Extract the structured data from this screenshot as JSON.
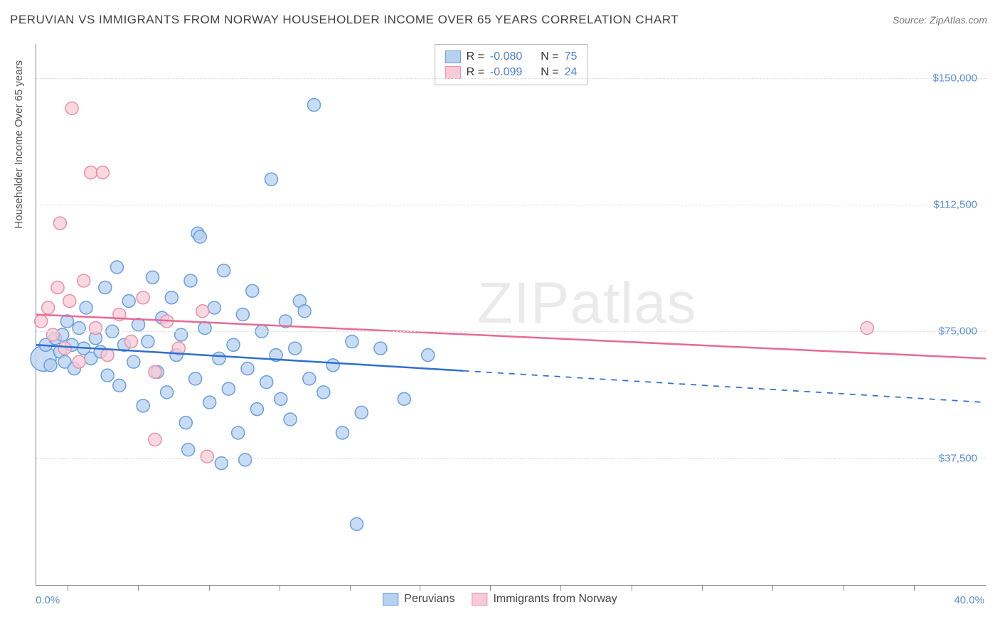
{
  "title": "PERUVIAN VS IMMIGRANTS FROM NORWAY HOUSEHOLDER INCOME OVER 65 YEARS CORRELATION CHART",
  "source": "Source: ZipAtlas.com",
  "watermark": "ZIPatlas",
  "chart": {
    "type": "scatter-with-regression",
    "x_axis": {
      "min_label": "0.0%",
      "max_label": "40.0%",
      "min": 0,
      "max": 40,
      "tick_positions_pct": [
        3.3,
        10.7,
        18.2,
        25.6,
        33.0,
        40.4,
        47.8,
        55.2,
        62.7,
        70.1,
        77.5,
        85.0,
        92.4
      ]
    },
    "y_axis": {
      "label": "Householder Income Over 65 years",
      "min": 0,
      "max": 160000,
      "gridlines": [
        {
          "value": 37500,
          "label": "$37,500"
        },
        {
          "value": 75000,
          "label": "$75,000"
        },
        {
          "value": 112500,
          "label": "$112,500"
        },
        {
          "value": 150000,
          "label": "$150,000"
        }
      ]
    },
    "legend_top": {
      "series": [
        {
          "color": "blue",
          "r_label": "R =",
          "r_value": "-0.080",
          "n_label": "N =",
          "n_value": "75"
        },
        {
          "color": "pink",
          "r_label": "R =",
          "r_value": "-0.099",
          "n_label": "N =",
          "n_value": "24"
        }
      ]
    },
    "legend_bottom": {
      "items": [
        {
          "color": "blue",
          "label": "Peruvians"
        },
        {
          "color": "pink",
          "label": "Immigrants from Norway"
        }
      ]
    },
    "series": [
      {
        "name": "Peruvians",
        "marker_color_fill": "#b6d0f0",
        "marker_color_stroke": "#6a9fe0",
        "marker_opacity": 0.75,
        "marker_radius": 9,
        "regression": {
          "color": "#2f6fd0",
          "width": 2.5,
          "solid_x_end_pct": 18,
          "y_start": 71000,
          "y_end": 54000
        },
        "points": [
          {
            "x": 0.3,
            "y": 67000,
            "r": 18
          },
          {
            "x": 0.4,
            "y": 71000
          },
          {
            "x": 0.6,
            "y": 65000
          },
          {
            "x": 0.8,
            "y": 73000
          },
          {
            "x": 1.0,
            "y": 69000
          },
          {
            "x": 1.1,
            "y": 74000
          },
          {
            "x": 1.2,
            "y": 66000
          },
          {
            "x": 1.3,
            "y": 78000
          },
          {
            "x": 1.5,
            "y": 71000
          },
          {
            "x": 1.6,
            "y": 64000
          },
          {
            "x": 1.8,
            "y": 76000
          },
          {
            "x": 2.0,
            "y": 70000
          },
          {
            "x": 2.1,
            "y": 82000
          },
          {
            "x": 2.3,
            "y": 67000
          },
          {
            "x": 2.5,
            "y": 73000
          },
          {
            "x": 2.7,
            "y": 69000
          },
          {
            "x": 2.9,
            "y": 88000
          },
          {
            "x": 3.0,
            "y": 62000
          },
          {
            "x": 3.2,
            "y": 75000
          },
          {
            "x": 3.4,
            "y": 94000
          },
          {
            "x": 3.5,
            "y": 59000
          },
          {
            "x": 3.7,
            "y": 71000
          },
          {
            "x": 3.9,
            "y": 84000
          },
          {
            "x": 4.1,
            "y": 66000
          },
          {
            "x": 4.3,
            "y": 77000
          },
          {
            "x": 4.5,
            "y": 53000
          },
          {
            "x": 4.7,
            "y": 72000
          },
          {
            "x": 4.9,
            "y": 91000
          },
          {
            "x": 5.1,
            "y": 63000
          },
          {
            "x": 5.3,
            "y": 79000
          },
          {
            "x": 5.5,
            "y": 57000
          },
          {
            "x": 5.7,
            "y": 85000
          },
          {
            "x": 5.9,
            "y": 68000
          },
          {
            "x": 6.1,
            "y": 74000
          },
          {
            "x": 6.3,
            "y": 48000
          },
          {
            "x": 6.4,
            "y": 40000
          },
          {
            "x": 6.5,
            "y": 90000
          },
          {
            "x": 6.7,
            "y": 61000
          },
          {
            "x": 6.8,
            "y": 104000
          },
          {
            "x": 6.9,
            "y": 103000
          },
          {
            "x": 7.1,
            "y": 76000
          },
          {
            "x": 7.3,
            "y": 54000
          },
          {
            "x": 7.5,
            "y": 82000
          },
          {
            "x": 7.7,
            "y": 67000
          },
          {
            "x": 7.8,
            "y": 36000
          },
          {
            "x": 7.9,
            "y": 93000
          },
          {
            "x": 8.1,
            "y": 58000
          },
          {
            "x": 8.3,
            "y": 71000
          },
          {
            "x": 8.5,
            "y": 45000
          },
          {
            "x": 8.7,
            "y": 80000
          },
          {
            "x": 8.8,
            "y": 37000
          },
          {
            "x": 8.9,
            "y": 64000
          },
          {
            "x": 9.1,
            "y": 87000
          },
          {
            "x": 9.3,
            "y": 52000
          },
          {
            "x": 9.5,
            "y": 75000
          },
          {
            "x": 9.7,
            "y": 60000
          },
          {
            "x": 9.9,
            "y": 120000
          },
          {
            "x": 10.1,
            "y": 68000
          },
          {
            "x": 10.3,
            "y": 55000
          },
          {
            "x": 10.5,
            "y": 78000
          },
          {
            "x": 10.7,
            "y": 49000
          },
          {
            "x": 10.9,
            "y": 70000
          },
          {
            "x": 11.1,
            "y": 84000
          },
          {
            "x": 11.3,
            "y": 81000
          },
          {
            "x": 11.5,
            "y": 61000
          },
          {
            "x": 11.7,
            "y": 142000
          },
          {
            "x": 12.1,
            "y": 57000
          },
          {
            "x": 12.5,
            "y": 65000
          },
          {
            "x": 12.9,
            "y": 45000
          },
          {
            "x": 13.3,
            "y": 72000
          },
          {
            "x": 13.5,
            "y": 18000
          },
          {
            "x": 13.7,
            "y": 51000
          },
          {
            "x": 14.5,
            "y": 70000
          },
          {
            "x": 15.5,
            "y": 55000
          },
          {
            "x": 16.5,
            "y": 68000
          }
        ]
      },
      {
        "name": "Immigrants from Norway",
        "marker_color_fill": "#f7cbd6",
        "marker_color_stroke": "#eb8fab",
        "marker_opacity": 0.75,
        "marker_radius": 9,
        "regression": {
          "color": "#e86a94",
          "width": 2.5,
          "solid_x_end_pct": 40,
          "y_start": 80000,
          "y_end": 67000
        },
        "points": [
          {
            "x": 0.2,
            "y": 78000
          },
          {
            "x": 0.5,
            "y": 82000
          },
          {
            "x": 0.7,
            "y": 74000
          },
          {
            "x": 0.9,
            "y": 88000
          },
          {
            "x": 1.0,
            "y": 107000
          },
          {
            "x": 1.2,
            "y": 70000
          },
          {
            "x": 1.4,
            "y": 84000
          },
          {
            "x": 1.5,
            "y": 141000
          },
          {
            "x": 1.8,
            "y": 66000
          },
          {
            "x": 2.0,
            "y": 90000
          },
          {
            "x": 2.3,
            "y": 122000
          },
          {
            "x": 2.5,
            "y": 76000
          },
          {
            "x": 2.8,
            "y": 122000
          },
          {
            "x": 3.0,
            "y": 68000
          },
          {
            "x": 3.5,
            "y": 80000
          },
          {
            "x": 4.0,
            "y": 72000
          },
          {
            "x": 4.5,
            "y": 85000
          },
          {
            "x": 5.0,
            "y": 63000
          },
          {
            "x": 5.0,
            "y": 43000
          },
          {
            "x": 5.5,
            "y": 78000
          },
          {
            "x": 6.0,
            "y": 70000
          },
          {
            "x": 7.0,
            "y": 81000
          },
          {
            "x": 7.2,
            "y": 38000
          },
          {
            "x": 35.0,
            "y": 76000
          }
        ]
      }
    ]
  }
}
